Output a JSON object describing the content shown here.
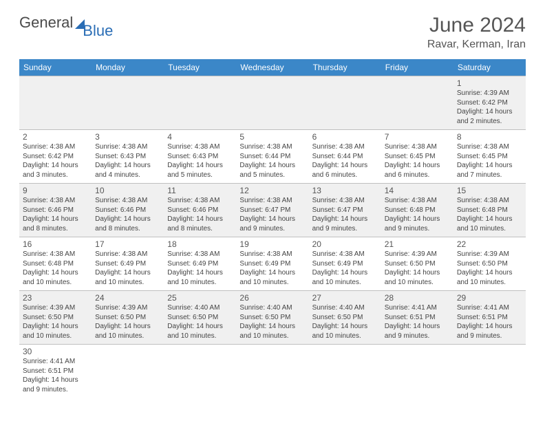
{
  "logo": {
    "part1": "General",
    "part2": "Blue"
  },
  "title": "June 2024",
  "location": "Ravar, Kerman, Iran",
  "colors": {
    "header_bg": "#3b87c8",
    "header_fg": "#ffffff",
    "row_alt_bg": "#f0f0f0",
    "row_bg": "#ffffff",
    "border": "#bfbfbf",
    "text": "#444444",
    "title_color": "#555555",
    "logo_gray": "#4a4a4a",
    "logo_blue": "#2a6db5"
  },
  "day_headers": [
    "Sunday",
    "Monday",
    "Tuesday",
    "Wednesday",
    "Thursday",
    "Friday",
    "Saturday"
  ],
  "weeks": [
    [
      null,
      null,
      null,
      null,
      null,
      null,
      {
        "n": "1",
        "sr": "Sunrise: 4:39 AM",
        "ss": "Sunset: 6:42 PM",
        "d1": "Daylight: 14 hours",
        "d2": "and 2 minutes."
      }
    ],
    [
      {
        "n": "2",
        "sr": "Sunrise: 4:38 AM",
        "ss": "Sunset: 6:42 PM",
        "d1": "Daylight: 14 hours",
        "d2": "and 3 minutes."
      },
      {
        "n": "3",
        "sr": "Sunrise: 4:38 AM",
        "ss": "Sunset: 6:43 PM",
        "d1": "Daylight: 14 hours",
        "d2": "and 4 minutes."
      },
      {
        "n": "4",
        "sr": "Sunrise: 4:38 AM",
        "ss": "Sunset: 6:43 PM",
        "d1": "Daylight: 14 hours",
        "d2": "and 5 minutes."
      },
      {
        "n": "5",
        "sr": "Sunrise: 4:38 AM",
        "ss": "Sunset: 6:44 PM",
        "d1": "Daylight: 14 hours",
        "d2": "and 5 minutes."
      },
      {
        "n": "6",
        "sr": "Sunrise: 4:38 AM",
        "ss": "Sunset: 6:44 PM",
        "d1": "Daylight: 14 hours",
        "d2": "and 6 minutes."
      },
      {
        "n": "7",
        "sr": "Sunrise: 4:38 AM",
        "ss": "Sunset: 6:45 PM",
        "d1": "Daylight: 14 hours",
        "d2": "and 6 minutes."
      },
      {
        "n": "8",
        "sr": "Sunrise: 4:38 AM",
        "ss": "Sunset: 6:45 PM",
        "d1": "Daylight: 14 hours",
        "d2": "and 7 minutes."
      }
    ],
    [
      {
        "n": "9",
        "sr": "Sunrise: 4:38 AM",
        "ss": "Sunset: 6:46 PM",
        "d1": "Daylight: 14 hours",
        "d2": "and 8 minutes."
      },
      {
        "n": "10",
        "sr": "Sunrise: 4:38 AM",
        "ss": "Sunset: 6:46 PM",
        "d1": "Daylight: 14 hours",
        "d2": "and 8 minutes."
      },
      {
        "n": "11",
        "sr": "Sunrise: 4:38 AM",
        "ss": "Sunset: 6:46 PM",
        "d1": "Daylight: 14 hours",
        "d2": "and 8 minutes."
      },
      {
        "n": "12",
        "sr": "Sunrise: 4:38 AM",
        "ss": "Sunset: 6:47 PM",
        "d1": "Daylight: 14 hours",
        "d2": "and 9 minutes."
      },
      {
        "n": "13",
        "sr": "Sunrise: 4:38 AM",
        "ss": "Sunset: 6:47 PM",
        "d1": "Daylight: 14 hours",
        "d2": "and 9 minutes."
      },
      {
        "n": "14",
        "sr": "Sunrise: 4:38 AM",
        "ss": "Sunset: 6:48 PM",
        "d1": "Daylight: 14 hours",
        "d2": "and 9 minutes."
      },
      {
        "n": "15",
        "sr": "Sunrise: 4:38 AM",
        "ss": "Sunset: 6:48 PM",
        "d1": "Daylight: 14 hours",
        "d2": "and 10 minutes."
      }
    ],
    [
      {
        "n": "16",
        "sr": "Sunrise: 4:38 AM",
        "ss": "Sunset: 6:48 PM",
        "d1": "Daylight: 14 hours",
        "d2": "and 10 minutes."
      },
      {
        "n": "17",
        "sr": "Sunrise: 4:38 AM",
        "ss": "Sunset: 6:49 PM",
        "d1": "Daylight: 14 hours",
        "d2": "and 10 minutes."
      },
      {
        "n": "18",
        "sr": "Sunrise: 4:38 AM",
        "ss": "Sunset: 6:49 PM",
        "d1": "Daylight: 14 hours",
        "d2": "and 10 minutes."
      },
      {
        "n": "19",
        "sr": "Sunrise: 4:38 AM",
        "ss": "Sunset: 6:49 PM",
        "d1": "Daylight: 14 hours",
        "d2": "and 10 minutes."
      },
      {
        "n": "20",
        "sr": "Sunrise: 4:38 AM",
        "ss": "Sunset: 6:49 PM",
        "d1": "Daylight: 14 hours",
        "d2": "and 10 minutes."
      },
      {
        "n": "21",
        "sr": "Sunrise: 4:39 AM",
        "ss": "Sunset: 6:50 PM",
        "d1": "Daylight: 14 hours",
        "d2": "and 10 minutes."
      },
      {
        "n": "22",
        "sr": "Sunrise: 4:39 AM",
        "ss": "Sunset: 6:50 PM",
        "d1": "Daylight: 14 hours",
        "d2": "and 10 minutes."
      }
    ],
    [
      {
        "n": "23",
        "sr": "Sunrise: 4:39 AM",
        "ss": "Sunset: 6:50 PM",
        "d1": "Daylight: 14 hours",
        "d2": "and 10 minutes."
      },
      {
        "n": "24",
        "sr": "Sunrise: 4:39 AM",
        "ss": "Sunset: 6:50 PM",
        "d1": "Daylight: 14 hours",
        "d2": "and 10 minutes."
      },
      {
        "n": "25",
        "sr": "Sunrise: 4:40 AM",
        "ss": "Sunset: 6:50 PM",
        "d1": "Daylight: 14 hours",
        "d2": "and 10 minutes."
      },
      {
        "n": "26",
        "sr": "Sunrise: 4:40 AM",
        "ss": "Sunset: 6:50 PM",
        "d1": "Daylight: 14 hours",
        "d2": "and 10 minutes."
      },
      {
        "n": "27",
        "sr": "Sunrise: 4:40 AM",
        "ss": "Sunset: 6:50 PM",
        "d1": "Daylight: 14 hours",
        "d2": "and 10 minutes."
      },
      {
        "n": "28",
        "sr": "Sunrise: 4:41 AM",
        "ss": "Sunset: 6:51 PM",
        "d1": "Daylight: 14 hours",
        "d2": "and 9 minutes."
      },
      {
        "n": "29",
        "sr": "Sunrise: 4:41 AM",
        "ss": "Sunset: 6:51 PM",
        "d1": "Daylight: 14 hours",
        "d2": "and 9 minutes."
      }
    ],
    [
      {
        "n": "30",
        "sr": "Sunrise: 4:41 AM",
        "ss": "Sunset: 6:51 PM",
        "d1": "Daylight: 14 hours",
        "d2": "and 9 minutes."
      },
      null,
      null,
      null,
      null,
      null,
      null
    ]
  ]
}
